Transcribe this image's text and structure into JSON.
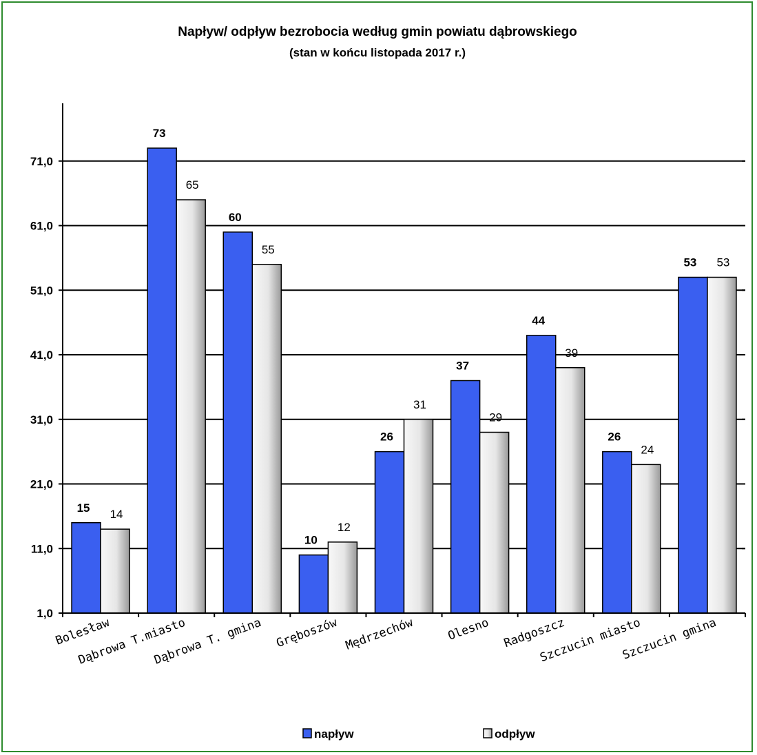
{
  "chart_data": {
    "type": "bar",
    "title": "Napływ/ odpływ bezrobocia według gmin powiatu dąbrowskiego",
    "subtitle": "(stan w końcu listopada 2017 r.)",
    "categories": [
      "Bolesław",
      "Dąbrowa T.miasto",
      "Dąbrowa T. gmina",
      "Gręboszów",
      "Mędrzechów",
      "Olesno",
      "Radgoszcz",
      "Szczucin miasto",
      "Szczucin gmina"
    ],
    "series": [
      {
        "name": "napływ",
        "values": [
          15,
          73,
          60,
          10,
          26,
          37,
          44,
          26,
          53
        ],
        "color": "#3a5ff0"
      },
      {
        "name": "odpływ",
        "values": [
          14,
          65,
          55,
          12,
          31,
          29,
          39,
          24,
          53
        ],
        "color": "#e8e8e8"
      }
    ],
    "y_ticks": [
      "1,0",
      "11,0",
      "21,0",
      "31,0",
      "41,0",
      "51,0",
      "61,0",
      "71,0"
    ],
    "ylim": [
      1,
      81
    ],
    "grid": true,
    "legend_position": "bottom",
    "frame_color": "#2e8b2e"
  }
}
